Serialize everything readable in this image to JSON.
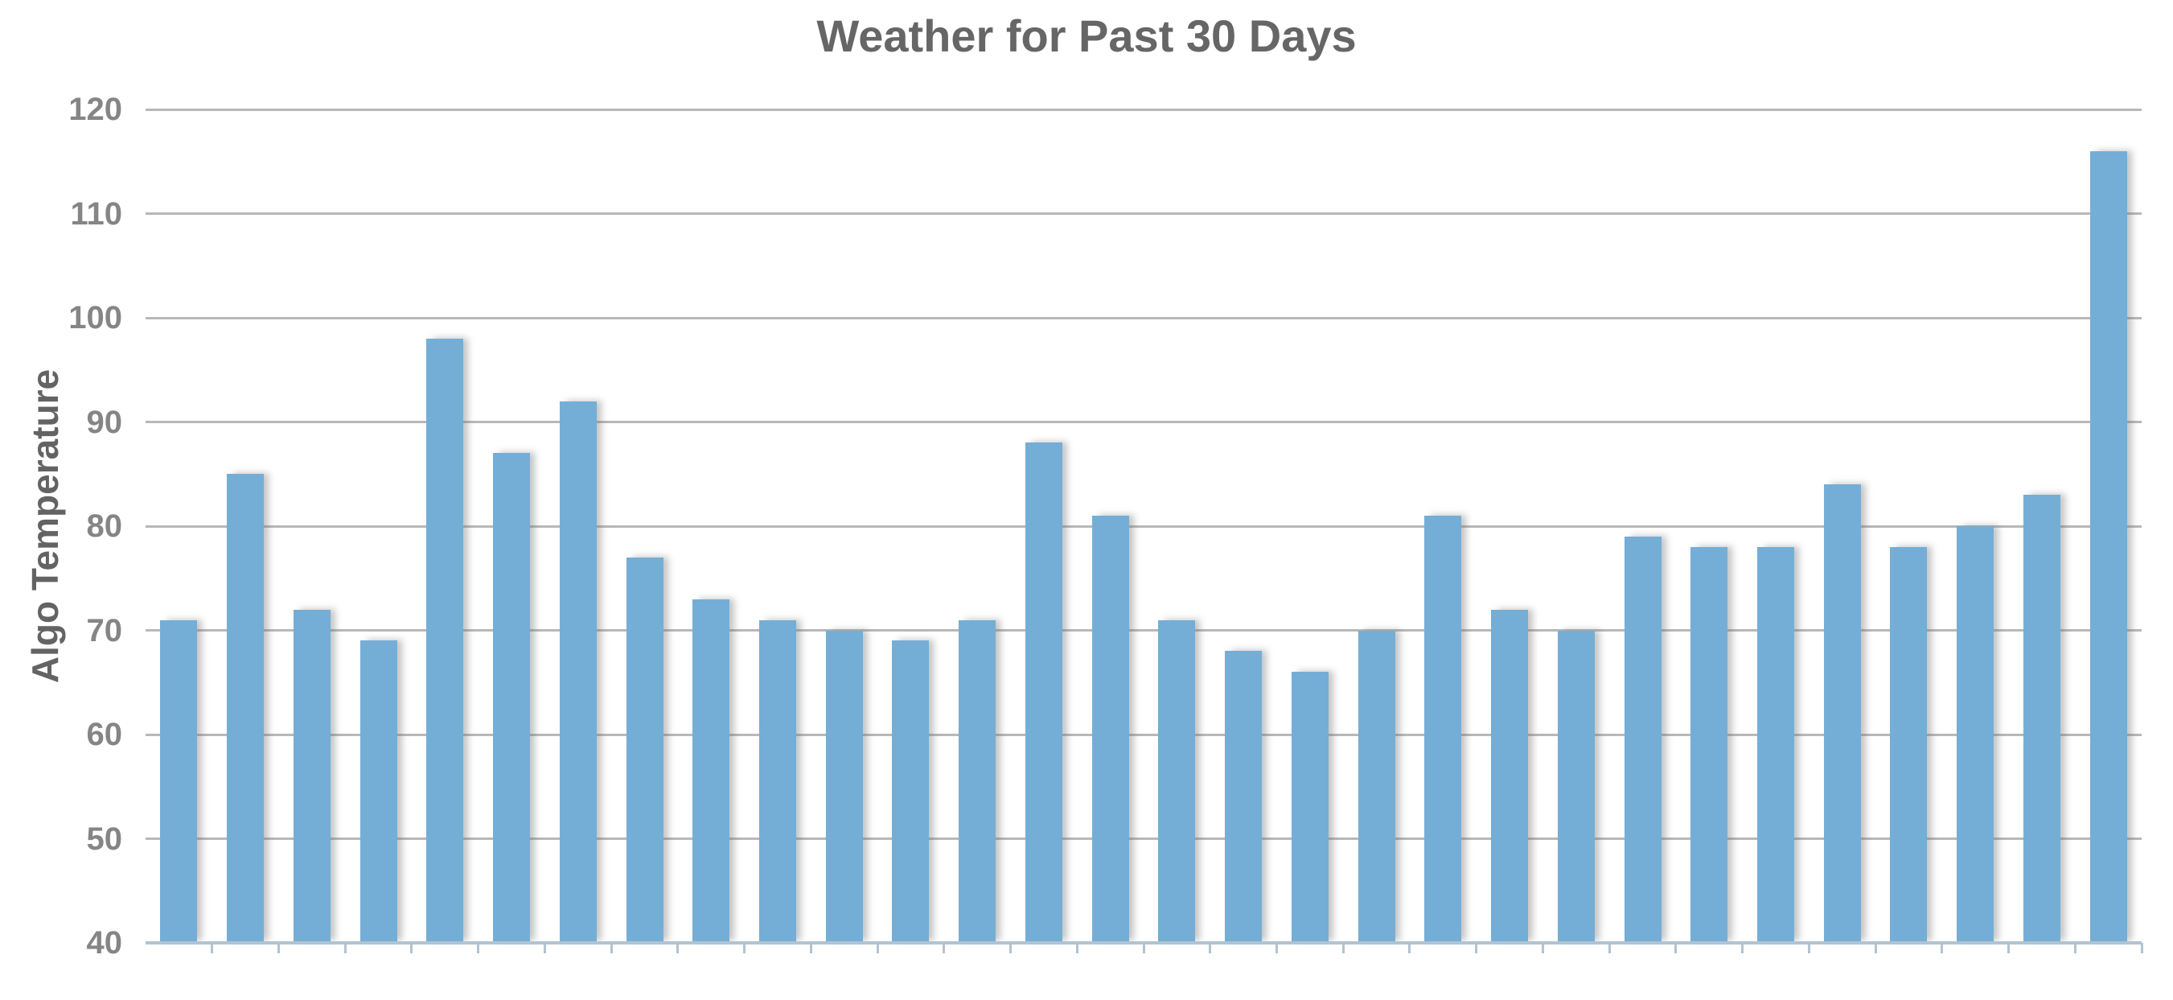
{
  "title": "Weather for Past 30 Days",
  "y_axis": {
    "label": "Algo Temperature",
    "min": 40,
    "max": 120,
    "tick_labels": [
      "40",
      "50",
      "60",
      "70",
      "80",
      "90",
      "100",
      "110",
      "120"
    ]
  },
  "x_axis": {
    "labels_visible": false,
    "tick_count": 30
  },
  "chart_data": {
    "type": "bar",
    "title": "Weather for Past 30 Days",
    "xlabel": "",
    "ylabel": "Algo Temperature",
    "ylim": [
      40,
      120
    ],
    "yticks": [
      40,
      50,
      60,
      70,
      80,
      90,
      100,
      110,
      120
    ],
    "grid": true,
    "legend": "none",
    "categories": [],
    "values": [
      71,
      85,
      72,
      69,
      98,
      87,
      92,
      77,
      73,
      71,
      70,
      69,
      71,
      88,
      81,
      71,
      68,
      66,
      70,
      81,
      72,
      70,
      79,
      78,
      78,
      84,
      78,
      80,
      83,
      116
    ]
  },
  "colors": {
    "bar_fill": "#74aed6",
    "bar_shadow": "rgba(110,110,110,0.40)",
    "gridline": "#b8b8b8",
    "axis_line": "#b2c3d1",
    "title_text": "#666666",
    "axis_title_text": "#636363",
    "tick_label_text": "#858585",
    "background": "#ffffff"
  }
}
